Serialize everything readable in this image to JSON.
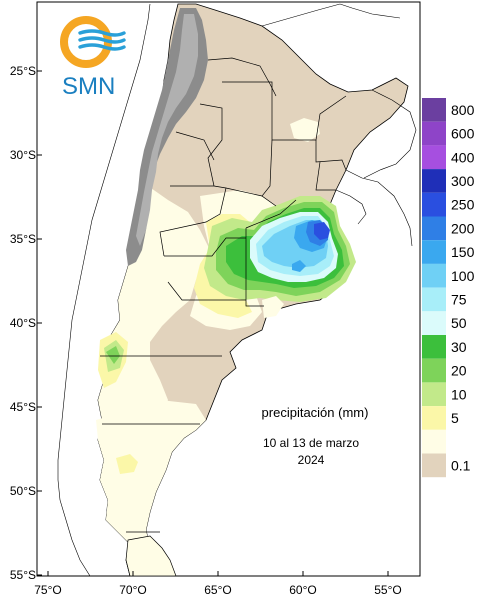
{
  "logo": {
    "text": "SMN"
  },
  "map": {
    "lat_labels": [
      "25°S",
      "30°S",
      "35°S",
      "40°S",
      "45°S",
      "50°S",
      "55°S"
    ],
    "lon_labels": [
      "75°O",
      "70°O",
      "65°O",
      "60°O",
      "55°O"
    ]
  },
  "annotation": {
    "variable": "precipitación (mm)",
    "period": "10 al 13 de marzo",
    "year": "2024"
  },
  "legend": {
    "unit": "mm",
    "levels": [
      {
        "label": "800",
        "color": "#6b3fa0"
      },
      {
        "label": "600",
        "color": "#8e44c8"
      },
      {
        "label": "400",
        "color": "#a64fe0"
      },
      {
        "label": "300",
        "color": "#1f2fb8"
      },
      {
        "label": "250",
        "color": "#2a4fe0"
      },
      {
        "label": "200",
        "color": "#2f7fe6"
      },
      {
        "label": "150",
        "color": "#3aa8ef"
      },
      {
        "label": "100",
        "color": "#6fd0f5"
      },
      {
        "label": "75",
        "color": "#a8eef9"
      },
      {
        "label": "50",
        "color": "#dbfbfb"
      },
      {
        "label": "30",
        "color": "#3cbf3c"
      },
      {
        "label": "20",
        "color": "#7ed35a"
      },
      {
        "label": "10",
        "color": "#c2e98a"
      },
      {
        "label": "5",
        "color": "#fbf7a8"
      },
      {
        "label": "",
        "color": "#fffde6"
      },
      {
        "label": "0.1",
        "color": "#e2d3bd"
      }
    ]
  },
  "colors": {
    "dry_land": "#e2d3bd",
    "trace": "#fffde6",
    "andes": "#8c8c8c",
    "logo_orange": "#f5a623",
    "logo_blue": "#2aa0d8"
  }
}
